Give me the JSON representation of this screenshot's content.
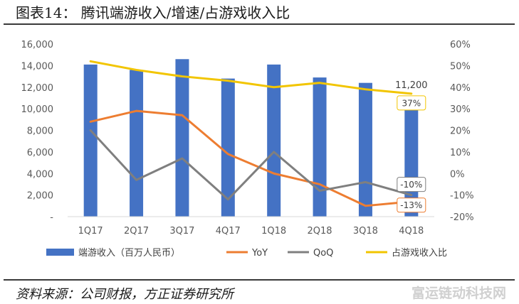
{
  "header": {
    "title": "图表14：  腾讯端游收入/增速/占游戏收入比"
  },
  "footer": {
    "source": "资料来源：公司财报，方正证券研究所",
    "watermark": "富运链动科技网"
  },
  "chart_data": {
    "type": "bar",
    "categories": [
      "1Q17",
      "2Q17",
      "3Q17",
      "4Q17",
      "1Q18",
      "2Q18",
      "3Q18",
      "4Q18"
    ],
    "series": [
      {
        "name": "端游收入（百万人民币）",
        "kind": "bar",
        "axis": "left",
        "color": "#4472C4",
        "values": [
          14100,
          13600,
          14600,
          12800,
          14100,
          12900,
          12400,
          11200
        ]
      },
      {
        "name": "YoY",
        "kind": "line",
        "axis": "right",
        "unit": "%",
        "color": "#ED7D31",
        "values": [
          24,
          29,
          27,
          9,
          0,
          -5,
          -15,
          -13
        ]
      },
      {
        "name": "QoQ",
        "kind": "line",
        "axis": "right",
        "unit": "%",
        "color": "#7F7F7F",
        "values": [
          20,
          -3,
          7,
          -12,
          10,
          -8,
          -4,
          -10
        ]
      },
      {
        "name": "占游戏收入比",
        "kind": "line",
        "axis": "right",
        "unit": "%",
        "color": "#F2C500",
        "values": [
          52,
          48,
          45,
          43,
          40,
          42,
          39,
          37
        ]
      }
    ],
    "y_left": {
      "ticks": [
        "-",
        "2,000",
        "4,000",
        "6,000",
        "8,000",
        "10,000",
        "12,000",
        "14,000",
        "16,000"
      ],
      "tick_values": [
        0,
        2000,
        4000,
        6000,
        8000,
        10000,
        12000,
        14000,
        16000
      ],
      "ylim": [
        0,
        16000
      ]
    },
    "y_right": {
      "ticks": [
        "-20%",
        "-10%",
        "0%",
        "10%",
        "20%",
        "30%",
        "40%",
        "50%",
        "60%"
      ],
      "tick_values": [
        -20,
        -10,
        0,
        10,
        20,
        30,
        40,
        50,
        60
      ],
      "ylim": [
        -20,
        60
      ]
    },
    "annotations": [
      {
        "text": "11,200",
        "series": 0,
        "index": 7,
        "boxed": false
      },
      {
        "text": "37%",
        "series": 3,
        "index": 7,
        "boxed": true
      },
      {
        "text": "-10%",
        "series": 2,
        "index": 7,
        "boxed": true
      },
      {
        "text": "-13%",
        "series": 1,
        "index": 7,
        "boxed": true
      }
    ],
    "legend_position": "bottom",
    "grid": false
  }
}
